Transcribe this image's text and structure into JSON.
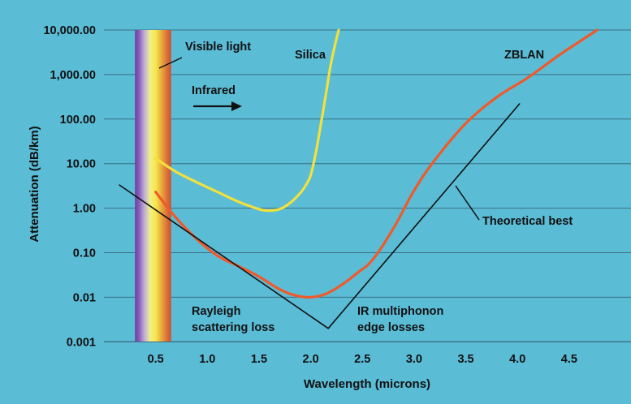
{
  "chart_data": {
    "type": "line",
    "xlabel": "Wavelength (microns)",
    "ylabel": "Attenuation (dB/km)",
    "xlim": [
      0.0,
      5.0
    ],
    "ylim": [
      0.001,
      10000
    ],
    "y_scale": "log",
    "grid": "horizontal",
    "x_ticks": [
      {
        "v": 0.5,
        "label": "0.5"
      },
      {
        "v": 1.0,
        "label": "1.0"
      },
      {
        "v": 1.5,
        "label": "1.5"
      },
      {
        "v": 2.0,
        "label": "2.0"
      },
      {
        "v": 2.5,
        "label": "2.5"
      },
      {
        "v": 3.0,
        "label": "3.0"
      },
      {
        "v": 3.5,
        "label": "3.5"
      },
      {
        "v": 4.0,
        "label": "4.0"
      },
      {
        "v": 4.5,
        "label": "4.5"
      }
    ],
    "y_ticks": [
      {
        "v": 0.001,
        "label": "0.001"
      },
      {
        "v": 0.01,
        "label": "0.01"
      },
      {
        "v": 0.1,
        "label": "0.10"
      },
      {
        "v": 1,
        "label": "1.00"
      },
      {
        "v": 10,
        "label": "10.00"
      },
      {
        "v": 100,
        "label": "100.00"
      },
      {
        "v": 1000,
        "label": "1,000.00"
      },
      {
        "v": 10000,
        "label": "10,000.00"
      }
    ],
    "visible_band": {
      "x_start": 0.3,
      "x_end": 0.65
    },
    "series": [
      {
        "name": "Silica",
        "color": "#f2e13c",
        "x": [
          0.5,
          0.7,
          0.9,
          1.1,
          1.3,
          1.5,
          1.6,
          1.7,
          1.8,
          1.9,
          1.95,
          2.0,
          2.05,
          2.1,
          2.15,
          2.2,
          2.27
        ],
        "y": [
          13,
          6.5,
          3.8,
          2.3,
          1.4,
          0.95,
          0.88,
          0.95,
          1.3,
          2.2,
          3.2,
          5.5,
          18,
          80,
          400,
          2000,
          10000
        ]
      },
      {
        "name": "ZBLAN",
        "color": "#ef5a2b",
        "x": [
          0.5,
          0.7,
          0.9,
          1.1,
          1.3,
          1.5,
          1.7,
          1.85,
          2.0,
          2.15,
          2.3,
          2.45,
          2.6,
          2.8,
          3.0,
          3.2,
          3.5,
          3.8,
          4.1,
          4.4,
          4.6,
          4.77
        ],
        "y": [
          2.3,
          0.6,
          0.2,
          0.085,
          0.05,
          0.029,
          0.015,
          0.011,
          0.01,
          0.012,
          0.019,
          0.035,
          0.07,
          0.35,
          2.5,
          12,
          80,
          310,
          850,
          2700,
          5500,
          10000
        ]
      },
      {
        "name": "Theoretical best",
        "color": "#111111",
        "x": [
          0.15,
          2.17,
          4.02
        ],
        "y": [
          3.3,
          0.002,
          220
        ]
      }
    ],
    "annotations": [
      {
        "key": "visible",
        "text": "Visible light"
      },
      {
        "key": "silica",
        "text": "Silica"
      },
      {
        "key": "infrared",
        "text": "Infrared"
      },
      {
        "key": "zblan",
        "text": "ZBLAN"
      },
      {
        "key": "theoretical",
        "text": "Theoretical best"
      },
      {
        "key": "rayleigh1",
        "text": "Rayleigh"
      },
      {
        "key": "rayleigh2",
        "text": "scattering loss"
      },
      {
        "key": "ir1",
        "text": "IR multiphonon"
      },
      {
        "key": "ir2",
        "text": "edge losses"
      }
    ]
  }
}
